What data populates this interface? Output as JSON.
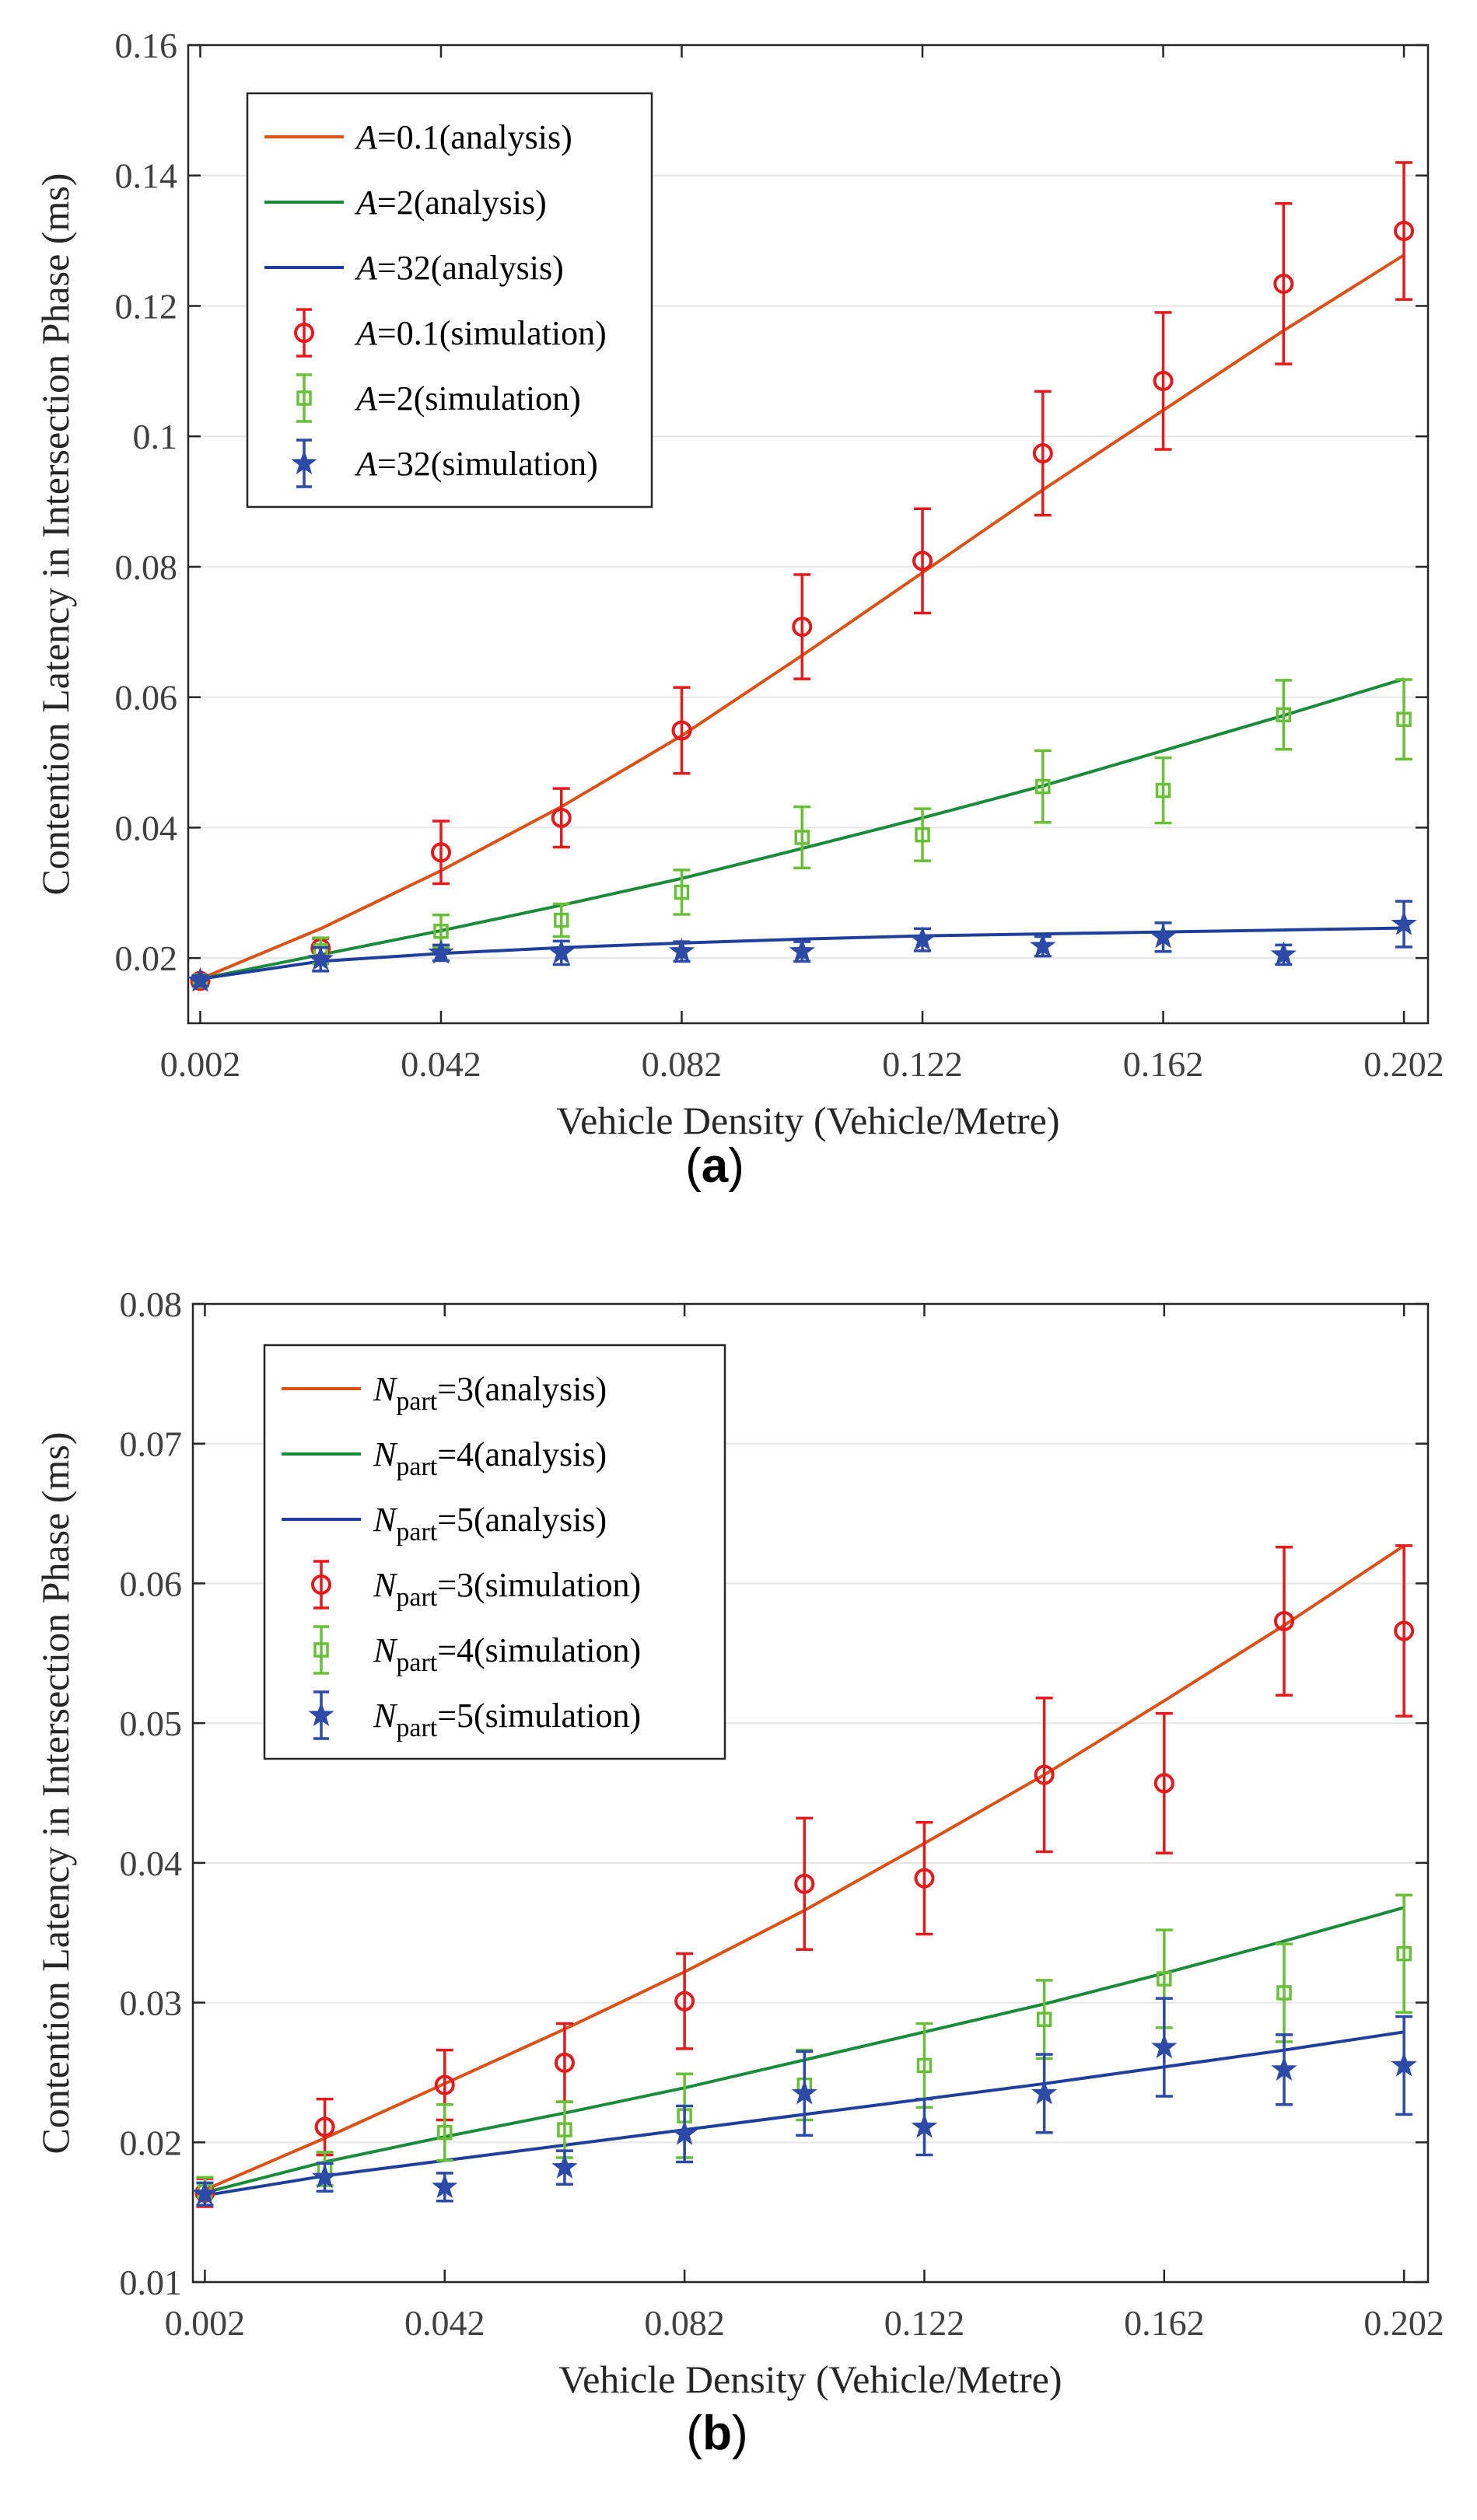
{
  "chart_data": [
    {
      "type": "line",
      "caption_open": "(",
      "caption_letter": "a",
      "caption_close": ")",
      "xlabel": "Vehicle Density (Vehicle/Metre)",
      "ylabel": "Contention Latency in Intersection Phase (ms)",
      "xlim": [
        0.0,
        0.206
      ],
      "ylim": [
        0.01,
        0.16
      ],
      "xticks": [
        0.002,
        0.042,
        0.082,
        0.122,
        0.162,
        0.202
      ],
      "xtick_labels": [
        "0.002",
        "0.042",
        "0.082",
        "0.122",
        "0.162",
        "0.202"
      ],
      "yticks": [
        0.02,
        0.04,
        0.06,
        0.08,
        0.1,
        0.12,
        0.14,
        0.16
      ],
      "ytick_labels": [
        "0.02",
        "0.04",
        "0.06",
        "0.08",
        "0.1",
        "0.12",
        "0.14",
        "0.16"
      ],
      "grid": "horizontal",
      "legend_position": "top-left",
      "x": [
        0.002,
        0.022,
        0.042,
        0.062,
        0.082,
        0.102,
        0.122,
        0.142,
        0.162,
        0.182,
        0.202
      ],
      "series": [
        {
          "kind": "analysis",
          "legend_var": "A",
          "legend_sub": "",
          "legend_text": "=0.1(analysis)",
          "color": "#d95319",
          "values": [
            0.0168,
            0.0245,
            0.0334,
            0.0432,
            0.0541,
            0.0664,
            0.0791,
            0.0918,
            0.104,
            0.1162,
            0.1278
          ]
        },
        {
          "kind": "analysis",
          "legend_var": "A",
          "legend_sub": "",
          "legend_text": "=2(analysis)",
          "color": "#1b8a3a",
          "values": [
            0.0168,
            0.0205,
            0.0242,
            0.0281,
            0.0322,
            0.0368,
            0.0415,
            0.0464,
            0.0518,
            0.0572,
            0.0628
          ]
        },
        {
          "kind": "analysis",
          "legend_var": "A",
          "legend_sub": "",
          "legend_text": "=32(analysis)",
          "color": "#1f3f9a",
          "values": [
            0.0168,
            0.0195,
            0.0207,
            0.0216,
            0.0223,
            0.0229,
            0.0234,
            0.0237,
            0.024,
            0.0243,
            0.0246
          ]
        },
        {
          "kind": "simulation",
          "marker": "circle",
          "legend_var": "A",
          "legend_sub": "",
          "legend_text": "=0.1(simulation)",
          "color": "#e41a1c",
          "values": [
            0.0165,
            0.0215,
            0.0362,
            0.0415,
            0.0549,
            0.0708,
            0.0809,
            0.0974,
            0.1085,
            0.1234,
            0.1315
          ],
          "err": [
            0.0008,
            0.0015,
            0.0048,
            0.0045,
            0.0066,
            0.008,
            0.008,
            0.0095,
            0.0105,
            0.0123,
            0.0105
          ]
        },
        {
          "kind": "simulation",
          "marker": "square",
          "legend_var": "A",
          "legend_sub": "",
          "legend_text": "=2(simulation)",
          "color": "#6abf3a",
          "values": [
            0.0165,
            0.0211,
            0.0241,
            0.0258,
            0.0301,
            0.0385,
            0.0389,
            0.0463,
            0.0457,
            0.0573,
            0.0566
          ],
          "err": [
            0.0008,
            0.002,
            0.0025,
            0.0025,
            0.0034,
            0.0047,
            0.004,
            0.0055,
            0.005,
            0.0053,
            0.0061
          ]
        },
        {
          "kind": "simulation",
          "marker": "star",
          "legend_var": "A",
          "legend_sub": "",
          "legend_text": "=32(simulation)",
          "color": "#2c4aa6",
          "values": [
            0.0165,
            0.0198,
            0.0208,
            0.0208,
            0.021,
            0.021,
            0.0228,
            0.0218,
            0.0232,
            0.0205,
            0.0252
          ],
          "err": [
            0.0008,
            0.0018,
            0.0012,
            0.0018,
            0.0015,
            0.0015,
            0.0017,
            0.0015,
            0.0022,
            0.0015,
            0.0035
          ]
        }
      ]
    },
    {
      "type": "line",
      "caption_open": "(",
      "caption_letter": "b",
      "caption_close": ")",
      "xlabel": "Vehicle Density (Vehicle/Metre)",
      "ylabel": "Contention Latency in Intersection Phase (ms)",
      "xlim": [
        0.0,
        0.206
      ],
      "ylim": [
        0.01,
        0.08
      ],
      "xticks": [
        0.002,
        0.042,
        0.082,
        0.122,
        0.162,
        0.202
      ],
      "xtick_labels": [
        "0.002",
        "0.042",
        "0.082",
        "0.122",
        "0.162",
        "0.202"
      ],
      "yticks": [
        0.01,
        0.02,
        0.03,
        0.04,
        0.05,
        0.06,
        0.07,
        0.08
      ],
      "ytick_labels": [
        "0.01",
        "0.02",
        "0.03",
        "0.04",
        "0.05",
        "0.06",
        "0.07",
        "0.08"
      ],
      "grid": "horizontal",
      "legend_position": "top-left",
      "x": [
        0.002,
        0.022,
        0.042,
        0.062,
        0.082,
        0.102,
        0.122,
        0.142,
        0.162,
        0.182,
        0.202
      ],
      "series": [
        {
          "kind": "analysis",
          "legend_var": "N",
          "legend_sub": "part",
          "legend_text": "=3(analysis)",
          "color": "#d95319",
          "values": [
            0.0166,
            0.0203,
            0.0242,
            0.0281,
            0.0322,
            0.0366,
            0.0414,
            0.0463,
            0.0516,
            0.057,
            0.0627
          ]
        },
        {
          "kind": "analysis",
          "legend_var": "N",
          "legend_sub": "part",
          "legend_text": "=4(analysis)",
          "color": "#1b8a3a",
          "values": [
            0.0164,
            0.0186,
            0.0204,
            0.0221,
            0.0239,
            0.0259,
            0.0279,
            0.0299,
            0.0321,
            0.0344,
            0.0368
          ]
        },
        {
          "kind": "analysis",
          "legend_var": "N",
          "legend_sub": "part",
          "legend_text": "=5(analysis)",
          "color": "#1f3f9a",
          "values": [
            0.0162,
            0.0176,
            0.0187,
            0.0198,
            0.0209,
            0.022,
            0.0231,
            0.0242,
            0.0254,
            0.0266,
            0.0279
          ]
        },
        {
          "kind": "simulation",
          "marker": "circle",
          "legend_var": "N",
          "legend_sub": "part",
          "legend_text": "=3(simulation)",
          "color": "#e41a1c",
          "values": [
            0.0164,
            0.0211,
            0.0241,
            0.0257,
            0.0301,
            0.0385,
            0.0389,
            0.0463,
            0.0457,
            0.0573,
            0.0566
          ],
          "err": [
            0.001,
            0.002,
            0.0025,
            0.0028,
            0.0034,
            0.0047,
            0.004,
            0.0055,
            0.005,
            0.0053,
            0.0061
          ]
        },
        {
          "kind": "simulation",
          "marker": "square",
          "legend_var": "N",
          "legend_sub": "part",
          "legend_text": "=4(simulation)",
          "color": "#6abf3a",
          "values": [
            0.0165,
            0.0181,
            0.0207,
            0.0209,
            0.0219,
            0.0241,
            0.0255,
            0.0288,
            0.0317,
            0.0307,
            0.0335
          ],
          "err": [
            0.001,
            0.0012,
            0.002,
            0.002,
            0.003,
            0.0025,
            0.003,
            0.0028,
            0.0035,
            0.0035,
            0.0042
          ]
        },
        {
          "kind": "simulation",
          "marker": "star",
          "legend_var": "N",
          "legend_sub": "part",
          "legend_text": "=5(simulation)",
          "color": "#2c4aa6",
          "values": [
            0.0163,
            0.0175,
            0.0168,
            0.0182,
            0.0206,
            0.0235,
            0.0211,
            0.0235,
            0.0268,
            0.0252,
            0.0255
          ],
          "err": [
            0.0008,
            0.001,
            0.001,
            0.0012,
            0.002,
            0.003,
            0.002,
            0.0028,
            0.0035,
            0.0025,
            0.0035
          ]
        }
      ]
    }
  ]
}
